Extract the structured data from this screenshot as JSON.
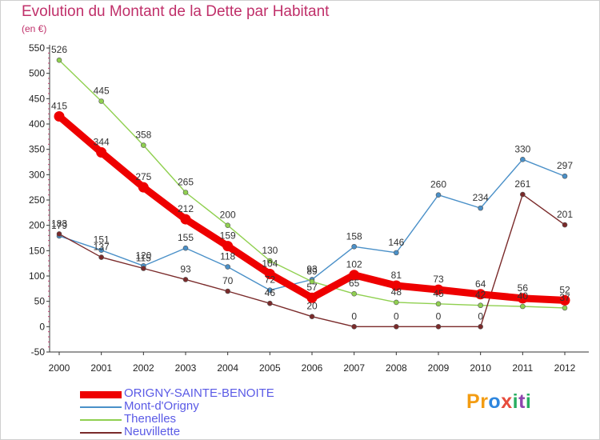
{
  "header": {
    "title": "Evolution du Montant de la Dette par Habitant",
    "subtitle": "(en €)"
  },
  "logo": {
    "text": "Proxiti",
    "colors": [
      "#f39c12",
      "#f39c12",
      "#2e86de",
      "#e74c3c",
      "#27ae60",
      "#8e44ad",
      "#27ae60"
    ]
  },
  "chart_data": {
    "type": "line",
    "x": [
      "2000",
      "2001",
      "2002",
      "2003",
      "2004",
      "2005",
      "2006",
      "2007",
      "2008",
      "2009",
      "2010",
      "2011",
      "2012"
    ],
    "ylim": [
      -50,
      550
    ],
    "yticks": [
      "-50",
      "0",
      "50",
      "100",
      "150",
      "200",
      "250",
      "300",
      "350",
      "400",
      "450",
      "500",
      "550"
    ],
    "grid": false,
    "legend_position": "bottom-left",
    "series": [
      {
        "name": "ORIGNY-SAINTE-BENOITE",
        "color": "#ee0000",
        "emphasis": true,
        "values": [
          415,
          344,
          275,
          212,
          159,
          104,
          57,
          102,
          81,
          73,
          64,
          56,
          52
        ],
        "labels": [
          "415",
          "344",
          "275",
          "212",
          "159",
          "104",
          "57",
          "102",
          "81",
          "73",
          "64",
          "56",
          "52"
        ]
      },
      {
        "name": "Mont-d'Origny",
        "color": "#4a90c8",
        "values": [
          179,
          151,
          120,
          155,
          118,
          72,
          93,
          158,
          146,
          260,
          234,
          330,
          297
        ],
        "labels": [
          "179",
          "151",
          "120",
          "155",
          "118",
          "72",
          "93",
          "158",
          "146",
          "260",
          "234",
          "330",
          "297"
        ]
      },
      {
        "name": "Thenelles",
        "color": "#90d050",
        "values": [
          526,
          445,
          358,
          265,
          200,
          130,
          89,
          65,
          48,
          45,
          42,
          40,
          37
        ],
        "labels": [
          "526",
          "445",
          "358",
          "265",
          "200",
          "130",
          "89",
          "65",
          "48",
          "45",
          "42",
          "40",
          "37"
        ]
      },
      {
        "name": "Neuvillette",
        "color": "#7a2a2a",
        "values": [
          183,
          137,
          115,
          93,
          70,
          46,
          20,
          0,
          0,
          0,
          0,
          261,
          201
        ],
        "labels": [
          "183",
          "137",
          "115",
          "93",
          "70",
          "46",
          "20",
          "0",
          "0",
          "0",
          "0",
          "261",
          "201"
        ]
      }
    ]
  }
}
